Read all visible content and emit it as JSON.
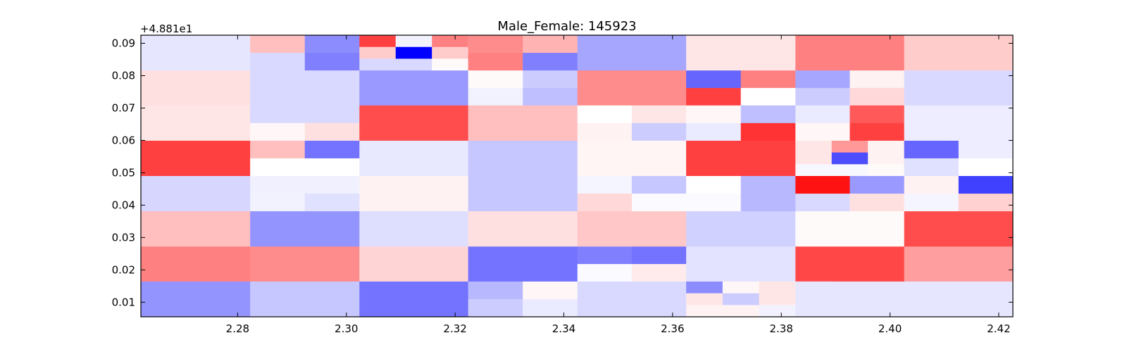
{
  "chart_data": {
    "type": "heatmap",
    "title": "Male_Female: 145923",
    "y_offset_label": "+4.881e1",
    "xlabel": "",
    "ylabel": "",
    "xlim": [
      2.2622,
      2.4226
    ],
    "ylim": [
      0.0055,
      0.0925
    ],
    "x_ticks": [
      2.28,
      2.3,
      2.32,
      2.34,
      2.36,
      2.38,
      2.4,
      2.42
    ],
    "x_tick_labels": [
      "2.28",
      "2.30",
      "2.32",
      "2.34",
      "2.36",
      "2.38",
      "2.40",
      "2.42"
    ],
    "y_ticks": [
      0.01,
      0.02,
      0.03,
      0.04,
      0.05,
      0.06,
      0.07,
      0.08,
      0.09
    ],
    "y_tick_labels": [
      "0.01",
      "0.02",
      "0.03",
      "0.04",
      "0.05",
      "0.06",
      "0.07",
      "0.08",
      "0.09"
    ],
    "colormap": "bwr",
    "color_low": "#0000ff",
    "color_mid": "#ffffff",
    "color_high": "#ff0000",
    "value_range": [
      -1,
      1
    ],
    "grid": false,
    "col_edges": [
      2.2622,
      2.2823,
      2.3024,
      2.3224,
      2.3425,
      2.3625,
      2.3826,
      2.4026,
      2.4226
    ],
    "row_edges": [
      0.0925,
      0.0816,
      0.0708,
      0.0599,
      0.049,
      0.0381,
      0.0272,
      0.0164,
      0.0055
    ],
    "cells": [
      [
        [
          [
            -0.1
          ]
        ],
        [
          [
            0.25,
            -0.45
          ],
          [
            -0.15,
            -0.5
          ]
        ],
        [
          [
            0.75,
            -0.05,
            0.5,
            0.2
          ],
          [
            0.2,
            -1.0,
            0.2,
            0.2
          ],
          [
            -0.15,
            -0.15,
            0.02,
            0.02
          ]
        ],
        [
          [
            0.45,
            0.3
          ],
          [
            0.5,
            -0.5
          ]
        ],
        [
          [
            -0.35
          ]
        ],
        [
          [
            0.1
          ]
        ],
        [
          [
            0.5
          ]
        ],
        [
          [
            0.2
          ]
        ]
      ],
      [
        [
          [
            0.12
          ]
        ],
        [
          [
            -0.15
          ]
        ],
        [
          [
            -0.4
          ]
        ],
        [
          [
            0.02,
            -0.2
          ],
          [
            -0.05,
            -0.25
          ]
        ],
        [
          [
            0.45
          ]
        ],
        [
          [
            -0.6,
            0.5
          ],
          [
            0.75,
            0.0
          ]
        ],
        [
          [
            -0.35,
            0.05
          ],
          [
            -0.2,
            0.15
          ]
        ],
        [
          [
            -0.15
          ]
        ]
      ],
      [
        [
          [
            0.1
          ]
        ],
        [
          [
            -0.15,
            -0.15
          ],
          [
            0.03,
            0.12
          ]
        ],
        [
          [
            0.7
          ]
        ],
        [
          [
            0.25
          ]
        ],
        [
          [
            0.0,
            0.1
          ],
          [
            0.05,
            -0.2
          ]
        ],
        [
          [
            0.03,
            -0.25
          ],
          [
            -0.08,
            0.8
          ]
        ],
        [
          [
            -0.08,
            0.65
          ],
          [
            0.03,
            0.75
          ]
        ],
        [
          [
            -0.07
          ]
        ]
      ],
      [
        [
          [
            0.75
          ]
        ],
        [
          [
            0.25,
            -0.55
          ],
          [
            0.0,
            0.0
          ]
        ],
        [
          [
            -0.09
          ]
        ],
        [
          [
            -0.22
          ]
        ],
        [
          [
            0.04
          ]
        ],
        [
          [
            0.75
          ]
        ],
        [
          [
            0.1,
            0.4,
            0.05,
            0.15
          ],
          [
            0.1,
            -0.7,
            0.05,
            0.15
          ],
          [
            -0.03,
            -0.03,
            0.02,
            0.02
          ]
        ],
        [
          [
            -0.6,
            -0.07
          ],
          [
            -0.12,
            0.0
          ]
        ]
      ],
      [
        [
          [
            -0.16
          ]
        ],
        [
          [
            -0.06,
            -0.06
          ],
          [
            -0.05,
            -0.12
          ]
        ],
        [
          [
            0.05
          ]
        ],
        [
          [
            -0.22
          ]
        ],
        [
          [
            -0.04,
            -0.22
          ],
          [
            0.15,
            -0.02
          ]
        ],
        [
          [
            0.0,
            -0.28
          ],
          [
            -0.02,
            -0.28
          ]
        ],
        [
          [
            0.93,
            -0.4
          ],
          [
            -0.15,
            0.12
          ]
        ],
        [
          [
            0.05,
            -0.75
          ],
          [
            -0.04,
            0.18
          ]
        ]
      ],
      [
        [
          [
            0.25
          ]
        ],
        [
          [
            -0.42
          ]
        ],
        [
          [
            -0.13
          ]
        ],
        [
          [
            0.12
          ]
        ],
        [
          [
            0.22
          ]
        ],
        [
          [
            -0.18
          ]
        ],
        [
          [
            0.02
          ]
        ],
        [
          [
            0.7
          ]
        ]
      ],
      [
        [
          [
            0.5
          ]
        ],
        [
          [
            0.45
          ]
        ],
        [
          [
            0.17
          ]
        ],
        [
          [
            -0.55
          ]
        ],
        [
          [
            -0.5,
            -0.55
          ],
          [
            -0.02,
            0.08
          ]
        ],
        [
          [
            -0.11
          ]
        ],
        [
          [
            0.72
          ]
        ],
        [
          [
            0.38
          ]
        ]
      ],
      [
        [
          [
            -0.42
          ]
        ],
        [
          [
            -0.22
          ]
        ],
        [
          [
            -0.55
          ]
        ],
        [
          [
            -0.28,
            0.03
          ],
          [
            -0.2,
            -0.08
          ]
        ],
        [
          [
            -0.15
          ]
        ],
        [
          [
            -0.45,
            0.03,
            0.1,
            0.1
          ],
          [
            0.1,
            -0.2,
            0.1,
            0.1
          ],
          [
            0.05,
            0.05,
            -0.05,
            -0.05
          ]
        ],
        [
          [
            -0.1
          ]
        ],
        [
          [
            -0.1
          ]
        ]
      ]
    ]
  }
}
